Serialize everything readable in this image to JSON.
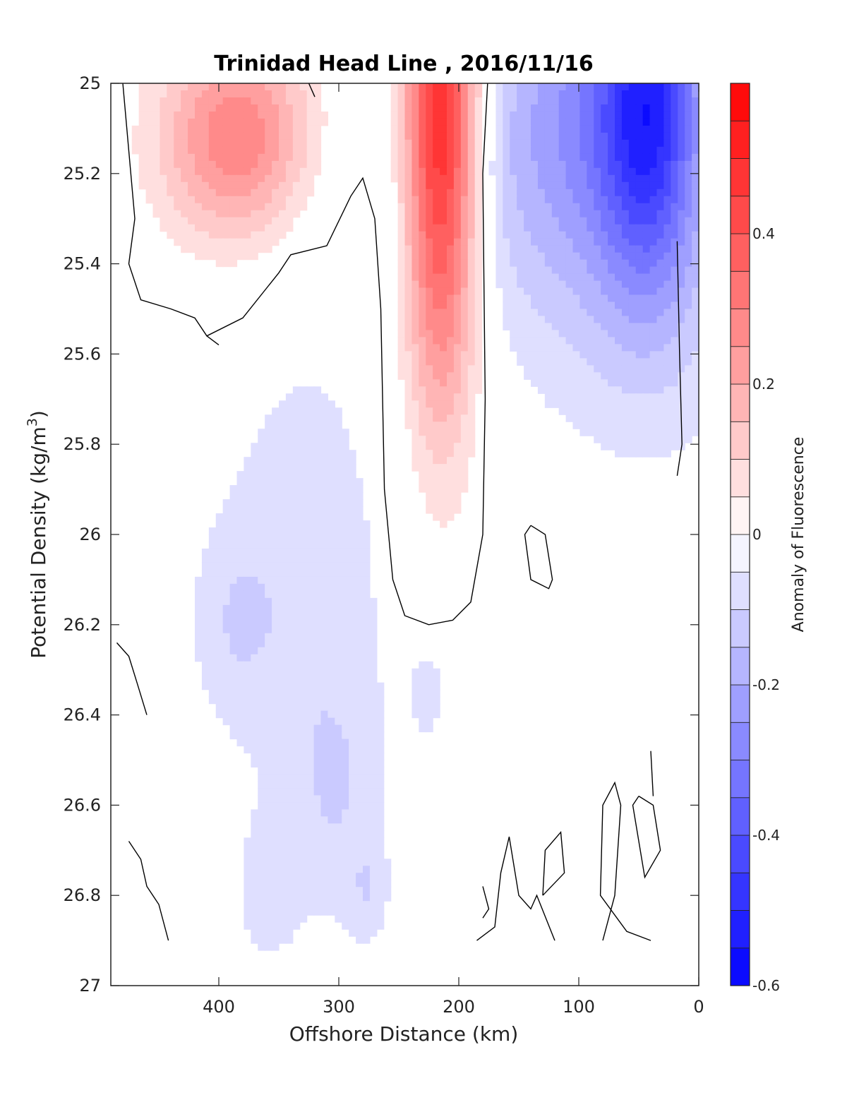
{
  "chart_data": {
    "type": "heatmap",
    "subtype": "filled-contour",
    "title": "Trinidad Head Line , 2016/11/16",
    "xlabel": "Offshore Distance (km)",
    "ylabel": "Potential Density (kg/m",
    "ylabel_superscript": "3",
    "ylabel_suffix": ")",
    "x_reversed": true,
    "y_reversed": true,
    "xlim": [
      490,
      0
    ],
    "ylim": [
      25,
      27
    ],
    "xticks": [
      400,
      300,
      200,
      100,
      0
    ],
    "yticks": [
      25,
      25.2,
      25.4,
      25.6,
      25.8,
      26,
      26.2,
      26.4,
      26.6,
      26.8,
      27
    ],
    "colorbar": {
      "label": "Anomaly of Fluorescence",
      "range": [
        -0.6,
        0.6
      ],
      "ticks": [
        -0.6,
        -0.4,
        -0.2,
        0,
        0.2,
        0.4
      ],
      "levels": [
        -0.6,
        -0.55,
        -0.5,
        -0.45,
        -0.4,
        -0.35,
        -0.3,
        -0.25,
        -0.2,
        -0.15,
        -0.1,
        -0.05,
        0,
        0.05,
        0.1,
        0.15,
        0.2,
        0.25,
        0.3,
        0.35,
        0.4,
        0.45,
        0.5,
        0.55,
        0.6
      ]
    },
    "features": [
      {
        "name": "positive-anomaly-offshore",
        "center": [
          385,
          25.12
        ],
        "peak": 0.3
      },
      {
        "name": "positive-anomaly-core",
        "center": [
          215,
          25.1
        ],
        "peak": 0.55
      },
      {
        "name": "negative-anomaly-nearshore",
        "center": [
          40,
          25.05
        ],
        "peak": -0.5
      },
      {
        "name": "weak-negative-midwater",
        "center": [
          320,
          26.2
        ],
        "peak": -0.1
      }
    ],
    "colors": {
      "positive": "#ff0000",
      "zero": "#ffffff",
      "negative": "#0000ff",
      "contour": "#000000"
    }
  }
}
